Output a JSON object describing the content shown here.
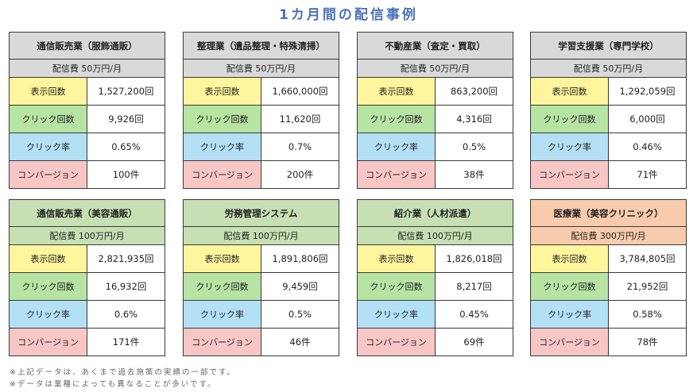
{
  "title": "1カ月間の配信事例",
  "row_labels": {
    "impressions": "表示回数",
    "clicks": "クリック回数",
    "ctr": "クリック率",
    "conversions": "コンバージョン"
  },
  "colors": {
    "title": "#4A73B8",
    "head_gray": "#D9D9D9",
    "head_green": "#C6E0B4",
    "head_orange": "#F8CBAD",
    "impressions": "#FFF59D",
    "clicks": "#B7E3A3",
    "ctr": "#B3E0F5",
    "conversions": "#F9C6C6"
  },
  "cards": [
    {
      "industry": "通信販売業（服飾通販）",
      "fee": "配信費 50万円/月",
      "impressions": "1,527,200回",
      "clicks": "9,926回",
      "ctr": "0.65%",
      "conversions": "100件",
      "head_color": "#D9D9D9"
    },
    {
      "industry": "整理業（遺品整理・特殊清掃）",
      "fee": "配信費 50万円/月",
      "impressions": "1,660,000回",
      "clicks": "11,620回",
      "ctr": "0.7%",
      "conversions": "200件",
      "head_color": "#D9D9D9"
    },
    {
      "industry": "不動産業（査定・買取）",
      "fee": "配信費 50万円/月",
      "impressions": "863,200回",
      "clicks": "4,316回",
      "ctr": "0.5%",
      "conversions": "38件",
      "head_color": "#D9D9D9"
    },
    {
      "industry": "学習支援業（専門学校）",
      "fee": "配信費 50万円/月",
      "impressions": "1,292,059回",
      "clicks": "6,000回",
      "ctr": "0.46%",
      "conversions": "71件",
      "head_color": "#D9D9D9"
    },
    {
      "industry": "通信販売業（美容通販）",
      "fee": "配信費 100万円/月",
      "impressions": "2,821,935回",
      "clicks": "16,932回",
      "ctr": "0.6%",
      "conversions": "171件",
      "head_color": "#C6E0B4"
    },
    {
      "industry": "労務管理システム",
      "fee": "配信費 100万円/月",
      "impressions": "1,891,806回",
      "clicks": "9,459回",
      "ctr": "0.5%",
      "conversions": "46件",
      "head_color": "#C6E0B4"
    },
    {
      "industry": "紹介業（人材派遣）",
      "fee": "配信費 100万円/月",
      "impressions": "1,826,018回",
      "clicks": "8,217回",
      "ctr": "0.45%",
      "conversions": "69件",
      "head_color": "#C6E0B4"
    },
    {
      "industry": "医療業（美容クリニック）",
      "fee": "配信費 300万円/月",
      "impressions": "3,784,805回",
      "clicks": "21,952回",
      "ctr": "0.58%",
      "conversions": "78件",
      "head_color": "#F8CBAD"
    }
  ],
  "notes": [
    "※上記データは、あくまで過去施策の実績の一部です。",
    "※データは業種によっても異なることが多いです。"
  ]
}
